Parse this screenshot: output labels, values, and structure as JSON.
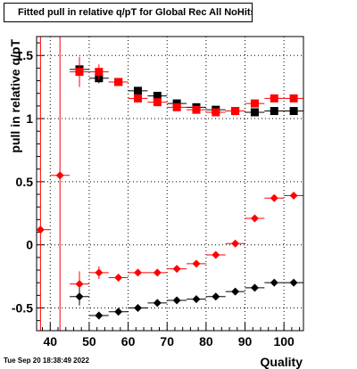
{
  "title": "Fitted pull in relative q/pT for Global Rec All NoHits",
  "timestamp": "Tue Sep 20 18:38:49 2022",
  "chart_data": {
    "type": "scatter",
    "xlabel": "Quality",
    "ylabel": "pull in relative q/pT",
    "xlim": [
      36.5,
      105
    ],
    "ylim": [
      -0.68,
      1.65
    ],
    "x_ticks": [
      40,
      50,
      60,
      70,
      80,
      90,
      100
    ],
    "y_ticks": [
      -0.5,
      0,
      0.5,
      1,
      1.5
    ],
    "x_tick_labels": [
      "40",
      "50",
      "60",
      "70",
      "80",
      "90",
      "100"
    ],
    "y_tick_labels": [
      "-0.5",
      "0",
      "0.5",
      "1",
      "1.5"
    ],
    "grid": true,
    "legend": "none",
    "series": [
      {
        "marker": "square",
        "color": "#000000",
        "x": [
          47.5,
          52.5,
          57.5,
          62.5,
          67.5,
          72.5,
          77.5,
          82.5,
          87.5,
          92.5,
          97.5,
          102.5
        ],
        "y": [
          1.39,
          1.32,
          1.29,
          1.22,
          1.18,
          1.12,
          1.09,
          1.07,
          1.06,
          1.05,
          1.06,
          1.06
        ],
        "yerr": [
          0.04,
          0.04,
          0.02,
          0.01,
          0.01,
          0.01,
          0.01,
          0.01,
          0.01,
          0.01,
          0.01,
          0.01
        ]
      },
      {
        "marker": "square",
        "color": "#ff0000",
        "x": [
          47.5,
          52.5,
          57.5,
          62.5,
          67.5,
          72.5,
          77.5,
          82.5,
          87.5,
          92.5,
          97.5,
          102.5
        ],
        "y": [
          1.37,
          1.37,
          1.29,
          1.16,
          1.13,
          1.09,
          1.07,
          1.05,
          1.06,
          1.12,
          1.16,
          1.16
        ],
        "yerr": [
          0.12,
          0.06,
          0.03,
          0.01,
          0.01,
          0.01,
          0.01,
          0.01,
          0.01,
          0.01,
          0.01,
          0.01
        ]
      },
      {
        "marker": "diamond",
        "color": "#ff0000",
        "x": [
          37.5,
          42.5,
          47.5,
          52.5,
          57.5,
          62.5,
          67.5,
          72.5,
          77.5,
          82.5,
          87.5,
          92.5,
          97.5,
          102.5
        ],
        "y": [
          0.12,
          0.55,
          -0.31,
          -0.22,
          -0.26,
          -0.22,
          -0.22,
          -0.19,
          -0.15,
          -0.08,
          0.01,
          0.21,
          0.37,
          0.39
        ],
        "yerr": [
          1.6,
          2.5,
          0.1,
          0.05,
          0.03,
          0.02,
          0.02,
          0.01,
          0.01,
          0.01,
          0.01,
          0.01,
          0.01,
          0.01
        ]
      },
      {
        "marker": "diamond",
        "color": "#000000",
        "x": [
          47.5,
          52.5,
          57.5,
          62.5,
          67.5,
          72.5,
          77.5,
          82.5,
          87.5,
          92.5,
          97.5,
          102.5
        ],
        "y": [
          -0.41,
          -0.56,
          -0.53,
          -0.5,
          -0.46,
          -0.44,
          -0.43,
          -0.41,
          -0.37,
          -0.34,
          -0.3,
          -0.3
        ],
        "yerr": [
          0.07,
          0.03,
          0.02,
          0.01,
          0.01,
          0.01,
          0.01,
          0.01,
          0.01,
          0.01,
          0.01,
          0.01
        ]
      }
    ]
  }
}
